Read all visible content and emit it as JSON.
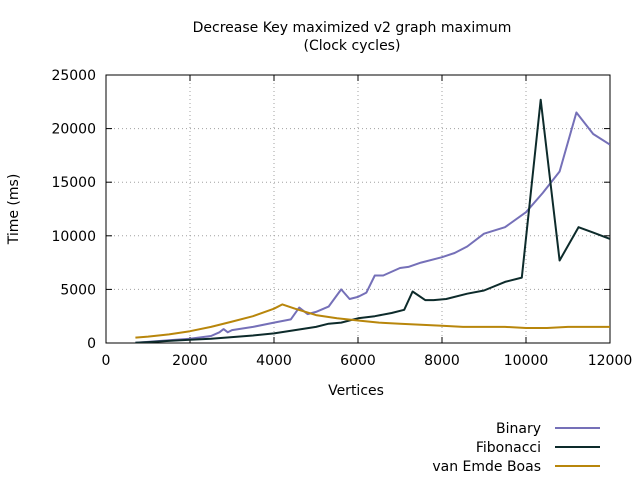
{
  "chart_data": {
    "type": "line",
    "title": "Decrease Key maximized v2 graph maximum",
    "subtitle": "(Clock cycles)",
    "xlabel": "Vertices",
    "ylabel": "Time (ms)",
    "xlim": [
      0,
      12000
    ],
    "ylim": [
      0,
      25000
    ],
    "xticks": [
      0,
      2000,
      4000,
      6000,
      8000,
      10000,
      12000
    ],
    "yticks": [
      0,
      5000,
      10000,
      15000,
      20000,
      25000
    ],
    "grid": true,
    "legend_position": "bottom-right, below plot",
    "series": [
      {
        "name": "Binary",
        "color": "#7570b8",
        "x": [
          700,
          1000,
          1500,
          2000,
          2500,
          2700,
          2800,
          2900,
          3000,
          3500,
          4000,
          4400,
          4600,
          4800,
          5000,
          5300,
          5600,
          5800,
          6000,
          6200,
          6400,
          6600,
          7000,
          7200,
          7500,
          8000,
          8300,
          8600,
          9000,
          9500,
          10000,
          10400,
          10800,
          11200,
          11600,
          12000
        ],
        "y": [
          30,
          100,
          250,
          400,
          650,
          1000,
          1300,
          1000,
          1200,
          1500,
          1900,
          2200,
          3300,
          2700,
          2900,
          3400,
          5000,
          4100,
          4300,
          4700,
          6300,
          6300,
          7000,
          7100,
          7500,
          8000,
          8400,
          9000,
          10200,
          10800,
          12200,
          14000,
          16000,
          21500,
          19500,
          18500
        ]
      },
      {
        "name": "Fibonacci",
        "color": "#0d2b2b",
        "x": [
          700,
          1000,
          1500,
          2000,
          2500,
          3000,
          3500,
          4000,
          4500,
          5000,
          5300,
          5600,
          6000,
          6400,
          6800,
          7100,
          7300,
          7600,
          7800,
          8100,
          8600,
          9000,
          9500,
          9900,
          10350,
          10800,
          11250,
          11600,
          12000
        ],
        "y": [
          20,
          80,
          200,
          300,
          400,
          550,
          700,
          900,
          1200,
          1500,
          1800,
          1900,
          2300,
          2500,
          2800,
          3100,
          4800,
          4000,
          4000,
          4100,
          4600,
          4900,
          5700,
          6100,
          22700,
          7700,
          10800,
          10300,
          9700
        ]
      },
      {
        "name": "van Emde Boas",
        "color": "#b8860b",
        "x": [
          700,
          1000,
          1500,
          2000,
          2500,
          3000,
          3500,
          4000,
          4200,
          4500,
          5000,
          5500,
          6000,
          6500,
          7000,
          7500,
          8000,
          8500,
          9000,
          9500,
          10000,
          10500,
          11000,
          11500,
          12000
        ],
        "y": [
          500,
          600,
          800,
          1100,
          1500,
          2000,
          2500,
          3200,
          3600,
          3200,
          2600,
          2300,
          2100,
          1900,
          1800,
          1700,
          1600,
          1500,
          1500,
          1500,
          1400,
          1400,
          1500,
          1500,
          1500
        ]
      }
    ]
  }
}
